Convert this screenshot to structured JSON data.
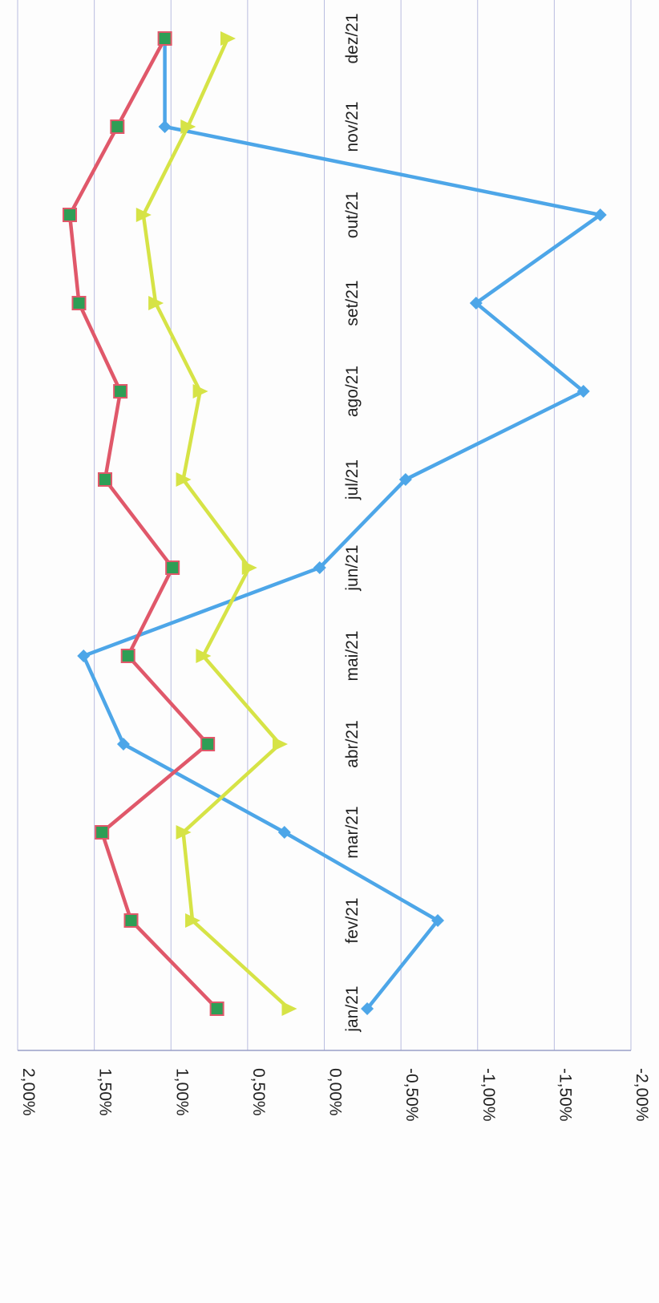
{
  "chart_data": {
    "type": "line",
    "orientation": "rotated-90-clockwise",
    "categories": [
      "jan/21",
      "fev/21",
      "mar/21",
      "abr/21",
      "mai/21",
      "jun/21",
      "jul/21",
      "ago/21",
      "set/21",
      "out/21",
      "nov/21",
      "dez/21"
    ],
    "y_ticks": [
      "2,00%",
      "1,50%",
      "1,00%",
      "0,50%",
      "0,00%",
      "-0,50%",
      "-1,00%",
      "-1,50%",
      "-2,00%"
    ],
    "ylim": [
      -2.0,
      2.0
    ],
    "y_unit": "%",
    "grid": true,
    "legend": "none",
    "series": [
      {
        "color": "#4da6e8",
        "marker": "diamond",
        "values": [
          -0.28,
          -0.74,
          0.26,
          1.31,
          1.57,
          0.03,
          -0.53,
          -1.69,
          -0.99,
          -1.8,
          1.04,
          1.04
        ]
      },
      {
        "color": "#e0586a",
        "marker": "square",
        "marker_fill": "#2e9e55",
        "values": [
          0.7,
          1.26,
          1.45,
          0.76,
          1.28,
          0.99,
          1.43,
          1.33,
          1.6,
          1.66,
          1.35,
          1.04
        ]
      },
      {
        "color": "#d6e346",
        "marker": "triangle",
        "values": [
          0.23,
          0.86,
          0.92,
          0.29,
          0.79,
          0.49,
          0.92,
          0.81,
          1.1,
          1.18,
          0.89,
          0.63
        ]
      }
    ]
  }
}
